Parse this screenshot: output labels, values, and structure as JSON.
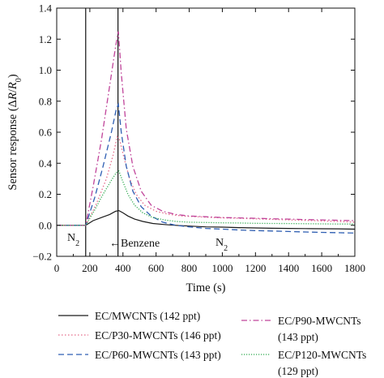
{
  "chart_data": {
    "type": "line",
    "xlabel": "Time (s)",
    "ylabel": "Sensor response (ΔR/R₀)",
    "xlim": [
      0,
      1800
    ],
    "ylim": [
      -0.2,
      1.4
    ],
    "xticks": [
      "0",
      "200",
      "400",
      "600",
      "800",
      "1000",
      "1200",
      "1400",
      "1600",
      "1800"
    ],
    "yticks": [
      "−0.2",
      "0.0",
      "0.2",
      "0.4",
      "0.6",
      "0.8",
      "1.0",
      "1.2",
      "1.4"
    ],
    "grid": false,
    "legend_position": "bottom",
    "vlines": [
      175,
      370
    ],
    "annotations": {
      "n2_left": {
        "base": "N",
        "sub": "2"
      },
      "benzene": "←Benzene",
      "n2_right": {
        "base": "N",
        "sub": "2"
      }
    },
    "series": [
      {
        "name": "EC/MWCNTs (142 ppt)",
        "color": "#1a1a1a",
        "dash": "solid",
        "x": [
          0,
          175,
          220,
          270,
          320,
          355,
          375,
          400,
          430,
          470,
          520,
          580,
          650,
          720,
          800,
          900,
          1000,
          1100,
          1200,
          1300,
          1400,
          1500,
          1600,
          1700,
          1800
        ],
        "y": [
          0.0,
          0.0,
          0.03,
          0.05,
          0.07,
          0.09,
          0.095,
          0.08,
          0.06,
          0.04,
          0.025,
          0.012,
          0.005,
          0.0,
          -0.005,
          -0.01,
          -0.012,
          -0.015,
          -0.017,
          -0.019,
          -0.02,
          -0.021,
          -0.022,
          -0.023,
          -0.025
        ]
      },
      {
        "name": "EC/P30-MWCNTs (146 ppt)",
        "color": "#e56b8a",
        "dash": "dot",
        "x": [
          0,
          175,
          240,
          300,
          340,
          365,
          380,
          410,
          440,
          480,
          530,
          600,
          680,
          760,
          850,
          950,
          1100,
          1250,
          1400,
          1550,
          1700,
          1800
        ],
        "y": [
          0.0,
          0.0,
          0.14,
          0.3,
          0.45,
          0.57,
          0.55,
          0.42,
          0.3,
          0.2,
          0.13,
          0.09,
          0.07,
          0.06,
          0.055,
          0.05,
          0.045,
          0.04,
          0.035,
          0.03,
          0.025,
          0.02
        ]
      },
      {
        "name": "EC/P60-MWCNTs (143 ppt)",
        "color": "#2f5fb3",
        "dash": "dash",
        "x": [
          0,
          175,
          230,
          280,
          330,
          360,
          372,
          390,
          420,
          460,
          510,
          570,
          640,
          720,
          800,
          900,
          1000,
          1100,
          1200,
          1300,
          1400,
          1500,
          1600,
          1700,
          1800
        ],
        "y": [
          0.0,
          0.0,
          0.18,
          0.38,
          0.6,
          0.75,
          0.78,
          0.6,
          0.38,
          0.22,
          0.12,
          0.06,
          0.02,
          0.0,
          -0.01,
          -0.02,
          -0.025,
          -0.03,
          -0.034,
          -0.037,
          -0.04,
          -0.043,
          -0.046,
          -0.048,
          -0.05
        ]
      },
      {
        "name": "EC/P90-MWCNTs (143 ppt)",
        "color": "#c0449a",
        "dash": "dashdot",
        "x": [
          0,
          175,
          220,
          270,
          320,
          355,
          372,
          390,
          420,
          460,
          510,
          570,
          640,
          720,
          800,
          900,
          1000,
          1100,
          1200,
          1300,
          1400,
          1500,
          1600,
          1700,
          1800
        ],
        "y": [
          0.0,
          0.0,
          0.25,
          0.55,
          0.9,
          1.15,
          1.25,
          0.98,
          0.62,
          0.38,
          0.22,
          0.13,
          0.09,
          0.07,
          0.06,
          0.055,
          0.05,
          0.048,
          0.045,
          0.042,
          0.04,
          0.037,
          0.035,
          0.032,
          0.03
        ]
      },
      {
        "name": "EC/P120-MWCNTs (129 ppt)",
        "color": "#2faa4f",
        "dash": "densedot",
        "x": [
          0,
          175,
          230,
          280,
          330,
          360,
          375,
          400,
          430,
          470,
          520,
          580,
          650,
          720,
          800,
          900,
          1000,
          1100,
          1200,
          1300,
          1400,
          1500,
          1600,
          1700,
          1800
        ],
        "y": [
          0.0,
          0.0,
          0.1,
          0.2,
          0.29,
          0.34,
          0.35,
          0.28,
          0.2,
          0.13,
          0.08,
          0.05,
          0.035,
          0.025,
          0.02,
          0.018,
          0.016,
          0.015,
          0.013,
          0.012,
          0.011,
          0.01,
          0.009,
          0.008,
          0.008
        ]
      }
    ]
  }
}
